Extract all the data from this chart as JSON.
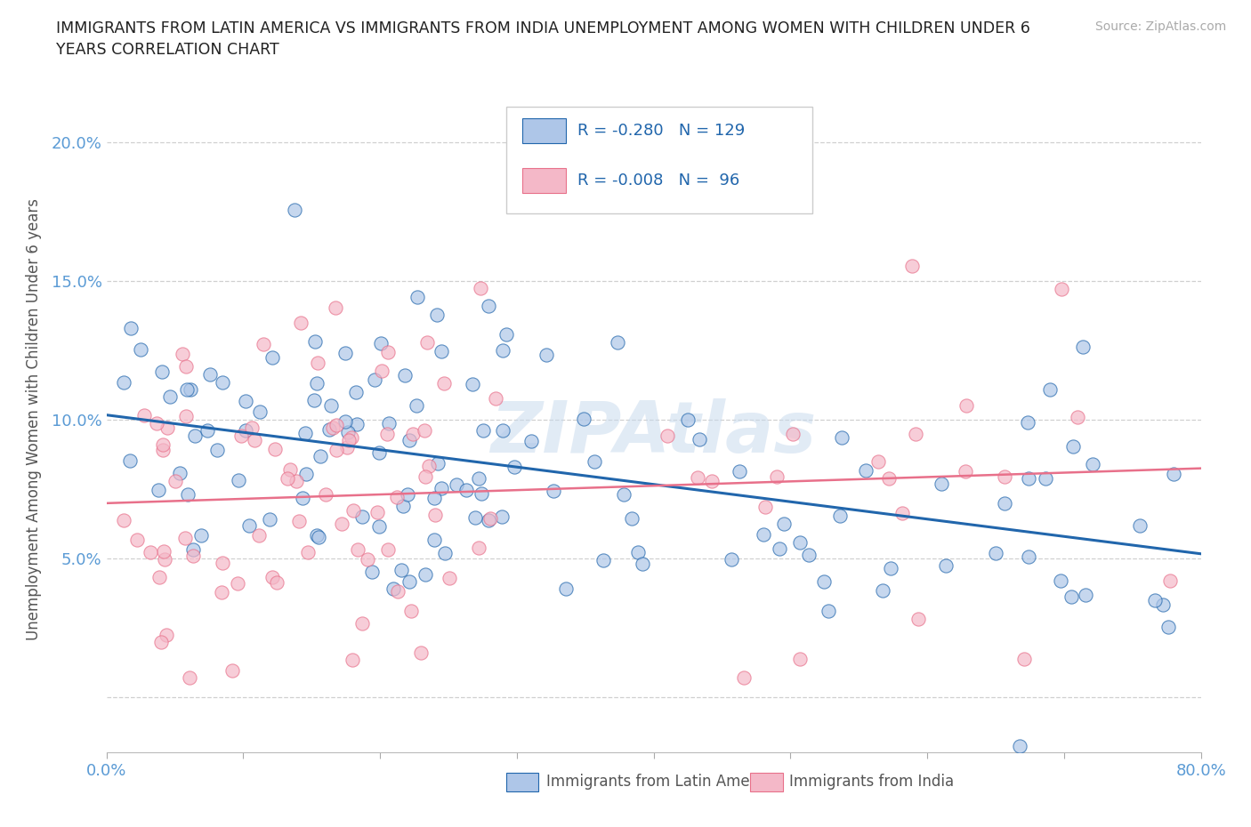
{
  "title": "IMMIGRANTS FROM LATIN AMERICA VS IMMIGRANTS FROM INDIA UNEMPLOYMENT AMONG WOMEN WITH CHILDREN UNDER 6\nYEARS CORRELATION CHART",
  "source_text": "Source: ZipAtlas.com",
  "ylabel": "Unemployment Among Women with Children Under 6 years",
  "xlim": [
    0.0,
    0.8
  ],
  "ylim": [
    -0.02,
    0.22
  ],
  "yticks": [
    0.0,
    0.05,
    0.1,
    0.15,
    0.2
  ],
  "ytick_labels": [
    "",
    "5.0%",
    "10.0%",
    "15.0%",
    "20.0%"
  ],
  "xticks": [
    0.0,
    0.1,
    0.2,
    0.3,
    0.4,
    0.5,
    0.6,
    0.7,
    0.8
  ],
  "xtick_labels": [
    "0.0%",
    "",
    "",
    "",
    "",
    "",
    "",
    "",
    "80.0%"
  ],
  "color_blue": "#aec6e8",
  "color_pink": "#f4b8c8",
  "line_blue": "#2166ac",
  "line_pink": "#e8708a",
  "legend_R1": "-0.280",
  "legend_N1": "129",
  "legend_R2": "-0.008",
  "legend_N2": "96",
  "background_color": "#ffffff",
  "watermark": "ZIPAtlas",
  "tick_color": "#5b9bd5",
  "grid_color": "#d0d0d0",
  "title_color": "#222222",
  "ylabel_color": "#555555",
  "source_color": "#aaaaaa"
}
